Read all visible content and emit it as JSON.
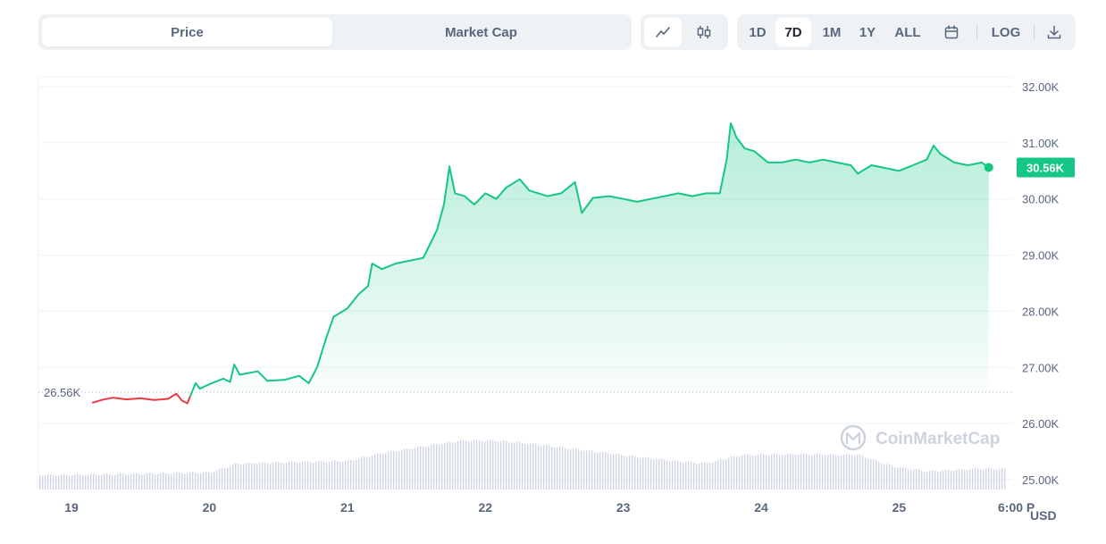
{
  "toolbar": {
    "tabs": [
      {
        "label": "Price",
        "active": true
      },
      {
        "label": "Market Cap",
        "active": false
      }
    ],
    "chart_styles": [
      {
        "icon": "line-chart-icon",
        "active": true
      },
      {
        "icon": "candlestick-icon",
        "active": false
      }
    ],
    "ranges": [
      {
        "label": "1D",
        "active": false
      },
      {
        "label": "7D",
        "active": true
      },
      {
        "label": "1M",
        "active": false
      },
      {
        "label": "1Y",
        "active": false
      },
      {
        "label": "ALL",
        "active": false
      }
    ],
    "calendar_icon": "calendar-icon",
    "log_label": "LOG",
    "download_icon": "download-icon"
  },
  "watermark": "CoinMarketCap",
  "chart_data": {
    "type": "area",
    "currency_label": "USD",
    "baseline_label": "26.56K",
    "baseline_value": 26560,
    "current_label": "30.56K",
    "current_value": 30560,
    "colors": {
      "up": "#16c784",
      "down": "#ea3943",
      "volume": "#cfd6e4"
    },
    "y_ticks": [
      "32.00K",
      "31.00K",
      "30.00K",
      "29.00K",
      "28.00K",
      "27.00K",
      "26.00K",
      "25.00K"
    ],
    "ylim": [
      25000,
      32000
    ],
    "x_ticks": [
      "19",
      "20",
      "21",
      "22",
      "23",
      "24",
      "25",
      "6:00 P"
    ],
    "x_tick_values": [
      0,
      1,
      2,
      3,
      4,
      5,
      6,
      6.82
    ],
    "xlim": [
      -0.24,
      6.82
    ],
    "series": [
      {
        "values": [
          [
            0.15,
            26370
          ],
          [
            0.22,
            26420
          ],
          [
            0.3,
            26460
          ],
          [
            0.4,
            26430
          ],
          [
            0.5,
            26450
          ],
          [
            0.6,
            26420
          ],
          [
            0.7,
            26440
          ],
          [
            0.76,
            26530
          ],
          [
            0.8,
            26410
          ],
          [
            0.84,
            26360
          ],
          [
            0.86,
            26480
          ],
          [
            0.9,
            26720
          ],
          [
            0.93,
            26620
          ],
          [
            1.0,
            26700
          ],
          [
            1.1,
            26800
          ],
          [
            1.15,
            26740
          ],
          [
            1.18,
            27050
          ],
          [
            1.22,
            26870
          ],
          [
            1.35,
            26930
          ],
          [
            1.42,
            26760
          ],
          [
            1.55,
            26780
          ],
          [
            1.65,
            26850
          ],
          [
            1.72,
            26720
          ],
          [
            1.78,
            27000
          ],
          [
            1.85,
            27550
          ],
          [
            1.9,
            27900
          ],
          [
            2.0,
            28050
          ],
          [
            2.08,
            28300
          ],
          [
            2.15,
            28450
          ],
          [
            2.18,
            28850
          ],
          [
            2.25,
            28750
          ],
          [
            2.35,
            28850
          ],
          [
            2.45,
            28900
          ],
          [
            2.55,
            28950
          ],
          [
            2.6,
            29200
          ],
          [
            2.65,
            29450
          ],
          [
            2.7,
            29900
          ],
          [
            2.74,
            30580
          ],
          [
            2.78,
            30100
          ],
          [
            2.85,
            30050
          ],
          [
            2.92,
            29900
          ],
          [
            3.0,
            30100
          ],
          [
            3.08,
            30000
          ],
          [
            3.15,
            30200
          ],
          [
            3.25,
            30350
          ],
          [
            3.32,
            30150
          ],
          [
            3.45,
            30050
          ],
          [
            3.55,
            30100
          ],
          [
            3.65,
            30300
          ],
          [
            3.7,
            29750
          ],
          [
            3.78,
            30020
          ],
          [
            3.9,
            30050
          ],
          [
            4.0,
            30000
          ],
          [
            4.1,
            29950
          ],
          [
            4.2,
            30000
          ],
          [
            4.3,
            30050
          ],
          [
            4.4,
            30100
          ],
          [
            4.5,
            30050
          ],
          [
            4.6,
            30100
          ],
          [
            4.7,
            30100
          ],
          [
            4.75,
            30700
          ],
          [
            4.78,
            31350
          ],
          [
            4.82,
            31100
          ],
          [
            4.88,
            30900
          ],
          [
            4.95,
            30850
          ],
          [
            5.05,
            30650
          ],
          [
            5.15,
            30650
          ],
          [
            5.25,
            30700
          ],
          [
            5.35,
            30650
          ],
          [
            5.45,
            30700
          ],
          [
            5.55,
            30650
          ],
          [
            5.65,
            30600
          ],
          [
            5.7,
            30450
          ],
          [
            5.8,
            30600
          ],
          [
            5.9,
            30550
          ],
          [
            6.0,
            30500
          ],
          [
            6.1,
            30600
          ],
          [
            6.2,
            30700
          ],
          [
            6.25,
            30950
          ],
          [
            6.3,
            30800
          ],
          [
            6.4,
            30650
          ],
          [
            6.5,
            30600
          ],
          [
            6.6,
            30650
          ],
          [
            6.65,
            30560
          ]
        ]
      }
    ],
    "volume_levels": [
      [
        0.0,
        0.24
      ],
      [
        1.0,
        0.28
      ],
      [
        1.2,
        0.43
      ],
      [
        2.0,
        0.47
      ],
      [
        2.25,
        0.6
      ],
      [
        2.8,
        0.8
      ],
      [
        3.05,
        0.81
      ],
      [
        3.3,
        0.76
      ],
      [
        3.7,
        0.65
      ],
      [
        3.95,
        0.58
      ],
      [
        4.35,
        0.47
      ],
      [
        4.6,
        0.43
      ],
      [
        4.85,
        0.57
      ],
      [
        5.25,
        0.58
      ],
      [
        5.7,
        0.57
      ],
      [
        5.95,
        0.38
      ],
      [
        6.2,
        0.3
      ],
      [
        6.55,
        0.34
      ],
      [
        6.82,
        0.34
      ]
    ]
  }
}
